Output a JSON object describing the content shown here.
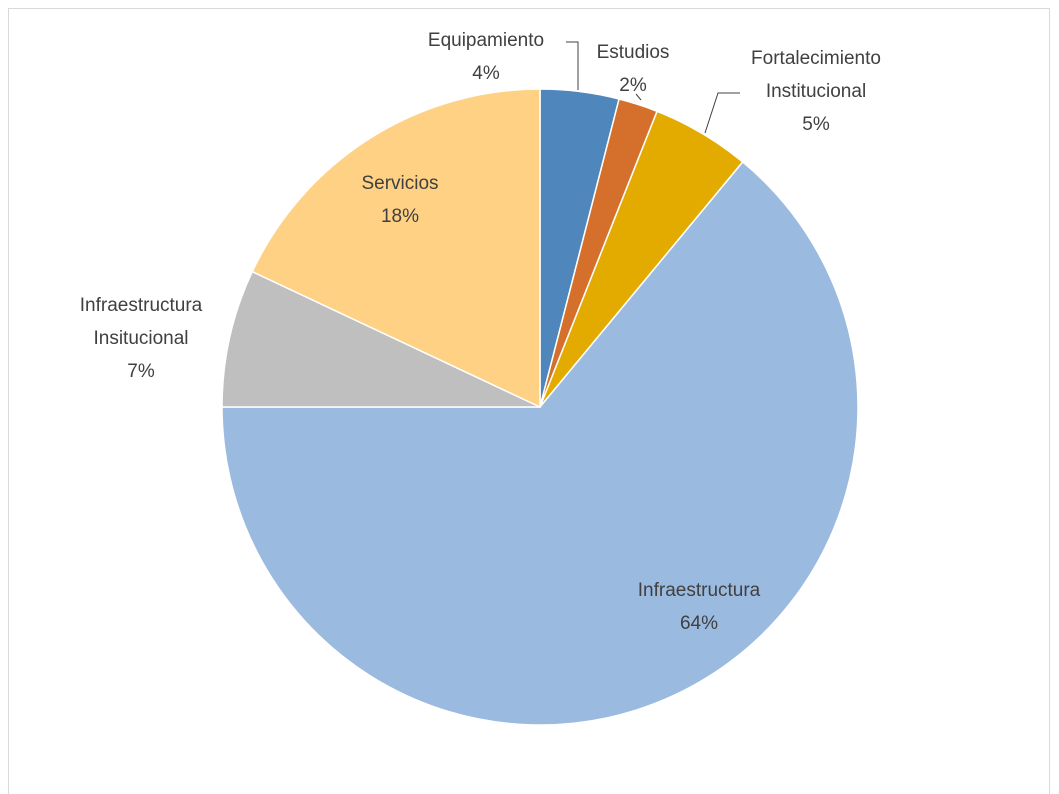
{
  "chart_data": {
    "type": "pie",
    "categories": [
      "Equipamiento",
      "Estudios",
      "Fortalecimiento Institucional",
      "Infraestructura",
      "Infraestructura Insitucional",
      "Servicios"
    ],
    "values": [
      4,
      2,
      5,
      64,
      7,
      18
    ],
    "value_labels": [
      "4%",
      "2%",
      "5%",
      "64%",
      "7%",
      "18%"
    ],
    "colors": [
      "#4f87bd",
      "#d4702b",
      "#e3aa00",
      "#9bbae0",
      "#bfbfbf",
      "#fed184"
    ]
  }
}
